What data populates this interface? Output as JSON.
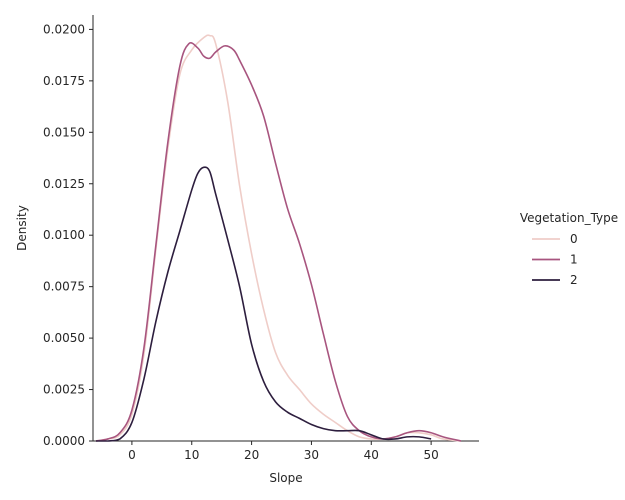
{
  "chart_data": {
    "type": "line",
    "xlabel": "Slope",
    "ylabel": "Density",
    "xlim": [
      -6.5,
      58
    ],
    "ylim": [
      0,
      0.0207
    ],
    "xticks": [
      0,
      10,
      20,
      30,
      40,
      50
    ],
    "yticks": [
      0.0,
      0.0025,
      0.005,
      0.0075,
      0.01,
      0.0125,
      0.015,
      0.0175,
      0.02
    ],
    "ytick_labels": [
      "0.0000",
      "0.0025",
      "0.0050",
      "0.0075",
      "0.0100",
      "0.0125",
      "0.0150",
      "0.0175",
      "0.0200"
    ],
    "grid": false,
    "legend": {
      "title": "Vegetation_Type",
      "placement": "right"
    },
    "series": [
      {
        "name": "0",
        "color": "#efcdc8",
        "x": [
          -6,
          -4,
          -2,
          0,
          2,
          4,
          6,
          8,
          10,
          12,
          13,
          14,
          16,
          18,
          20,
          22,
          24,
          26,
          28,
          30,
          32,
          34,
          36,
          38,
          40,
          42,
          44,
          46,
          48,
          50,
          52,
          55
        ],
        "y": [
          0.0,
          0.0001,
          0.0003,
          0.0013,
          0.0042,
          0.0093,
          0.0142,
          0.0178,
          0.019,
          0.0196,
          0.0197,
          0.0193,
          0.0165,
          0.0124,
          0.0091,
          0.0064,
          0.0043,
          0.0032,
          0.0025,
          0.0018,
          0.0013,
          0.0009,
          0.0005,
          0.0002,
          0.0001,
          0.0001,
          0.0002,
          0.0004,
          0.0004,
          0.0003,
          0.0001,
          0.0
        ]
      },
      {
        "name": "1",
        "color": "#a8557f",
        "x": [
          -6,
          -4,
          -2,
          0,
          2,
          4,
          6,
          8,
          9.5,
          11,
          12,
          13,
          14,
          15.5,
          17,
          18,
          20,
          22,
          24,
          26,
          28,
          30,
          32,
          34,
          36,
          38,
          40,
          42,
          44,
          46,
          48,
          50,
          52,
          55
        ],
        "y": [
          0.0,
          0.0001,
          0.0004,
          0.0015,
          0.0045,
          0.0095,
          0.0145,
          0.0182,
          0.0193,
          0.0191,
          0.0187,
          0.0186,
          0.0189,
          0.0192,
          0.019,
          0.0185,
          0.0173,
          0.0158,
          0.0135,
          0.0113,
          0.0096,
          0.0076,
          0.0052,
          0.0029,
          0.0012,
          0.0005,
          0.0002,
          0.0001,
          0.0002,
          0.0004,
          0.0005,
          0.0004,
          0.0002,
          0.0
        ]
      },
      {
        "name": "2",
        "color": "#2d1e3e",
        "x": [
          -6,
          -4,
          -2,
          0,
          2,
          4,
          6,
          8,
          10,
          11,
          12,
          13,
          14,
          16,
          18,
          20,
          22,
          24,
          26,
          28,
          30,
          32,
          34,
          36,
          38,
          40,
          42,
          44,
          46,
          48,
          50
        ],
        "y": [
          0.0,
          0.0,
          0.0001,
          0.0009,
          0.003,
          0.0058,
          0.0082,
          0.0102,
          0.0122,
          0.013,
          0.0133,
          0.0131,
          0.012,
          0.0098,
          0.0075,
          0.0047,
          0.0029,
          0.0019,
          0.0014,
          0.0011,
          0.0008,
          0.0006,
          0.0005,
          0.0005,
          0.0005,
          0.0003,
          0.0001,
          0.0001,
          0.0002,
          0.0002,
          0.0001
        ]
      }
    ]
  }
}
